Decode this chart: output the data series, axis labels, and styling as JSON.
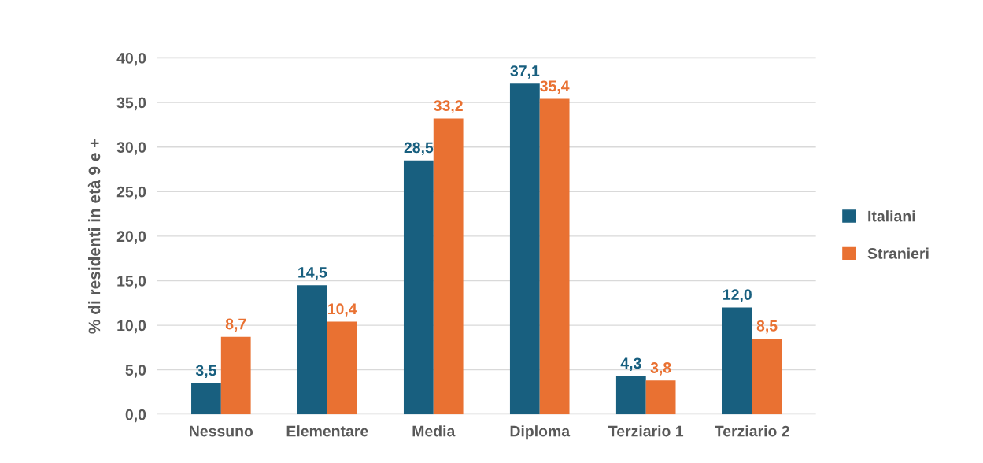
{
  "chart_data": {
    "type": "bar",
    "ylabel": "% di residenti in età 9 e +",
    "categories": [
      "Nessuno",
      "Elementare",
      "Media",
      "Diploma",
      "Terziario 1",
      "Terziario 2"
    ],
    "series": [
      {
        "name": "Italiani",
        "color": "#185f7f",
        "values": [
          3.5,
          14.5,
          28.5,
          37.1,
          4.3,
          12.0
        ],
        "value_labels": [
          "3,5",
          "14,5",
          "28,5",
          "37,1",
          "4,3",
          "12,0"
        ]
      },
      {
        "name": "Stranieri",
        "color": "#e97132",
        "values": [
          8.7,
          10.4,
          33.2,
          35.4,
          3.8,
          8.5
        ],
        "value_labels": [
          "8,7",
          "10,4",
          "33,2",
          "35,4",
          "3,8",
          "8,5"
        ]
      }
    ],
    "ylim": [
      0,
      40
    ],
    "yticks": [
      {
        "value": 0,
        "label": "0,0"
      },
      {
        "value": 5,
        "label": "5,0"
      },
      {
        "value": 10,
        "label": "10,0"
      },
      {
        "value": 15,
        "label": "15,0"
      },
      {
        "value": 20,
        "label": "20,0"
      },
      {
        "value": 25,
        "label": "25,0"
      },
      {
        "value": 30,
        "label": "30,0"
      },
      {
        "value": 35,
        "label": "35,0"
      },
      {
        "value": 40,
        "label": "40,0"
      }
    ],
    "grid": "y",
    "legend": "right"
  }
}
